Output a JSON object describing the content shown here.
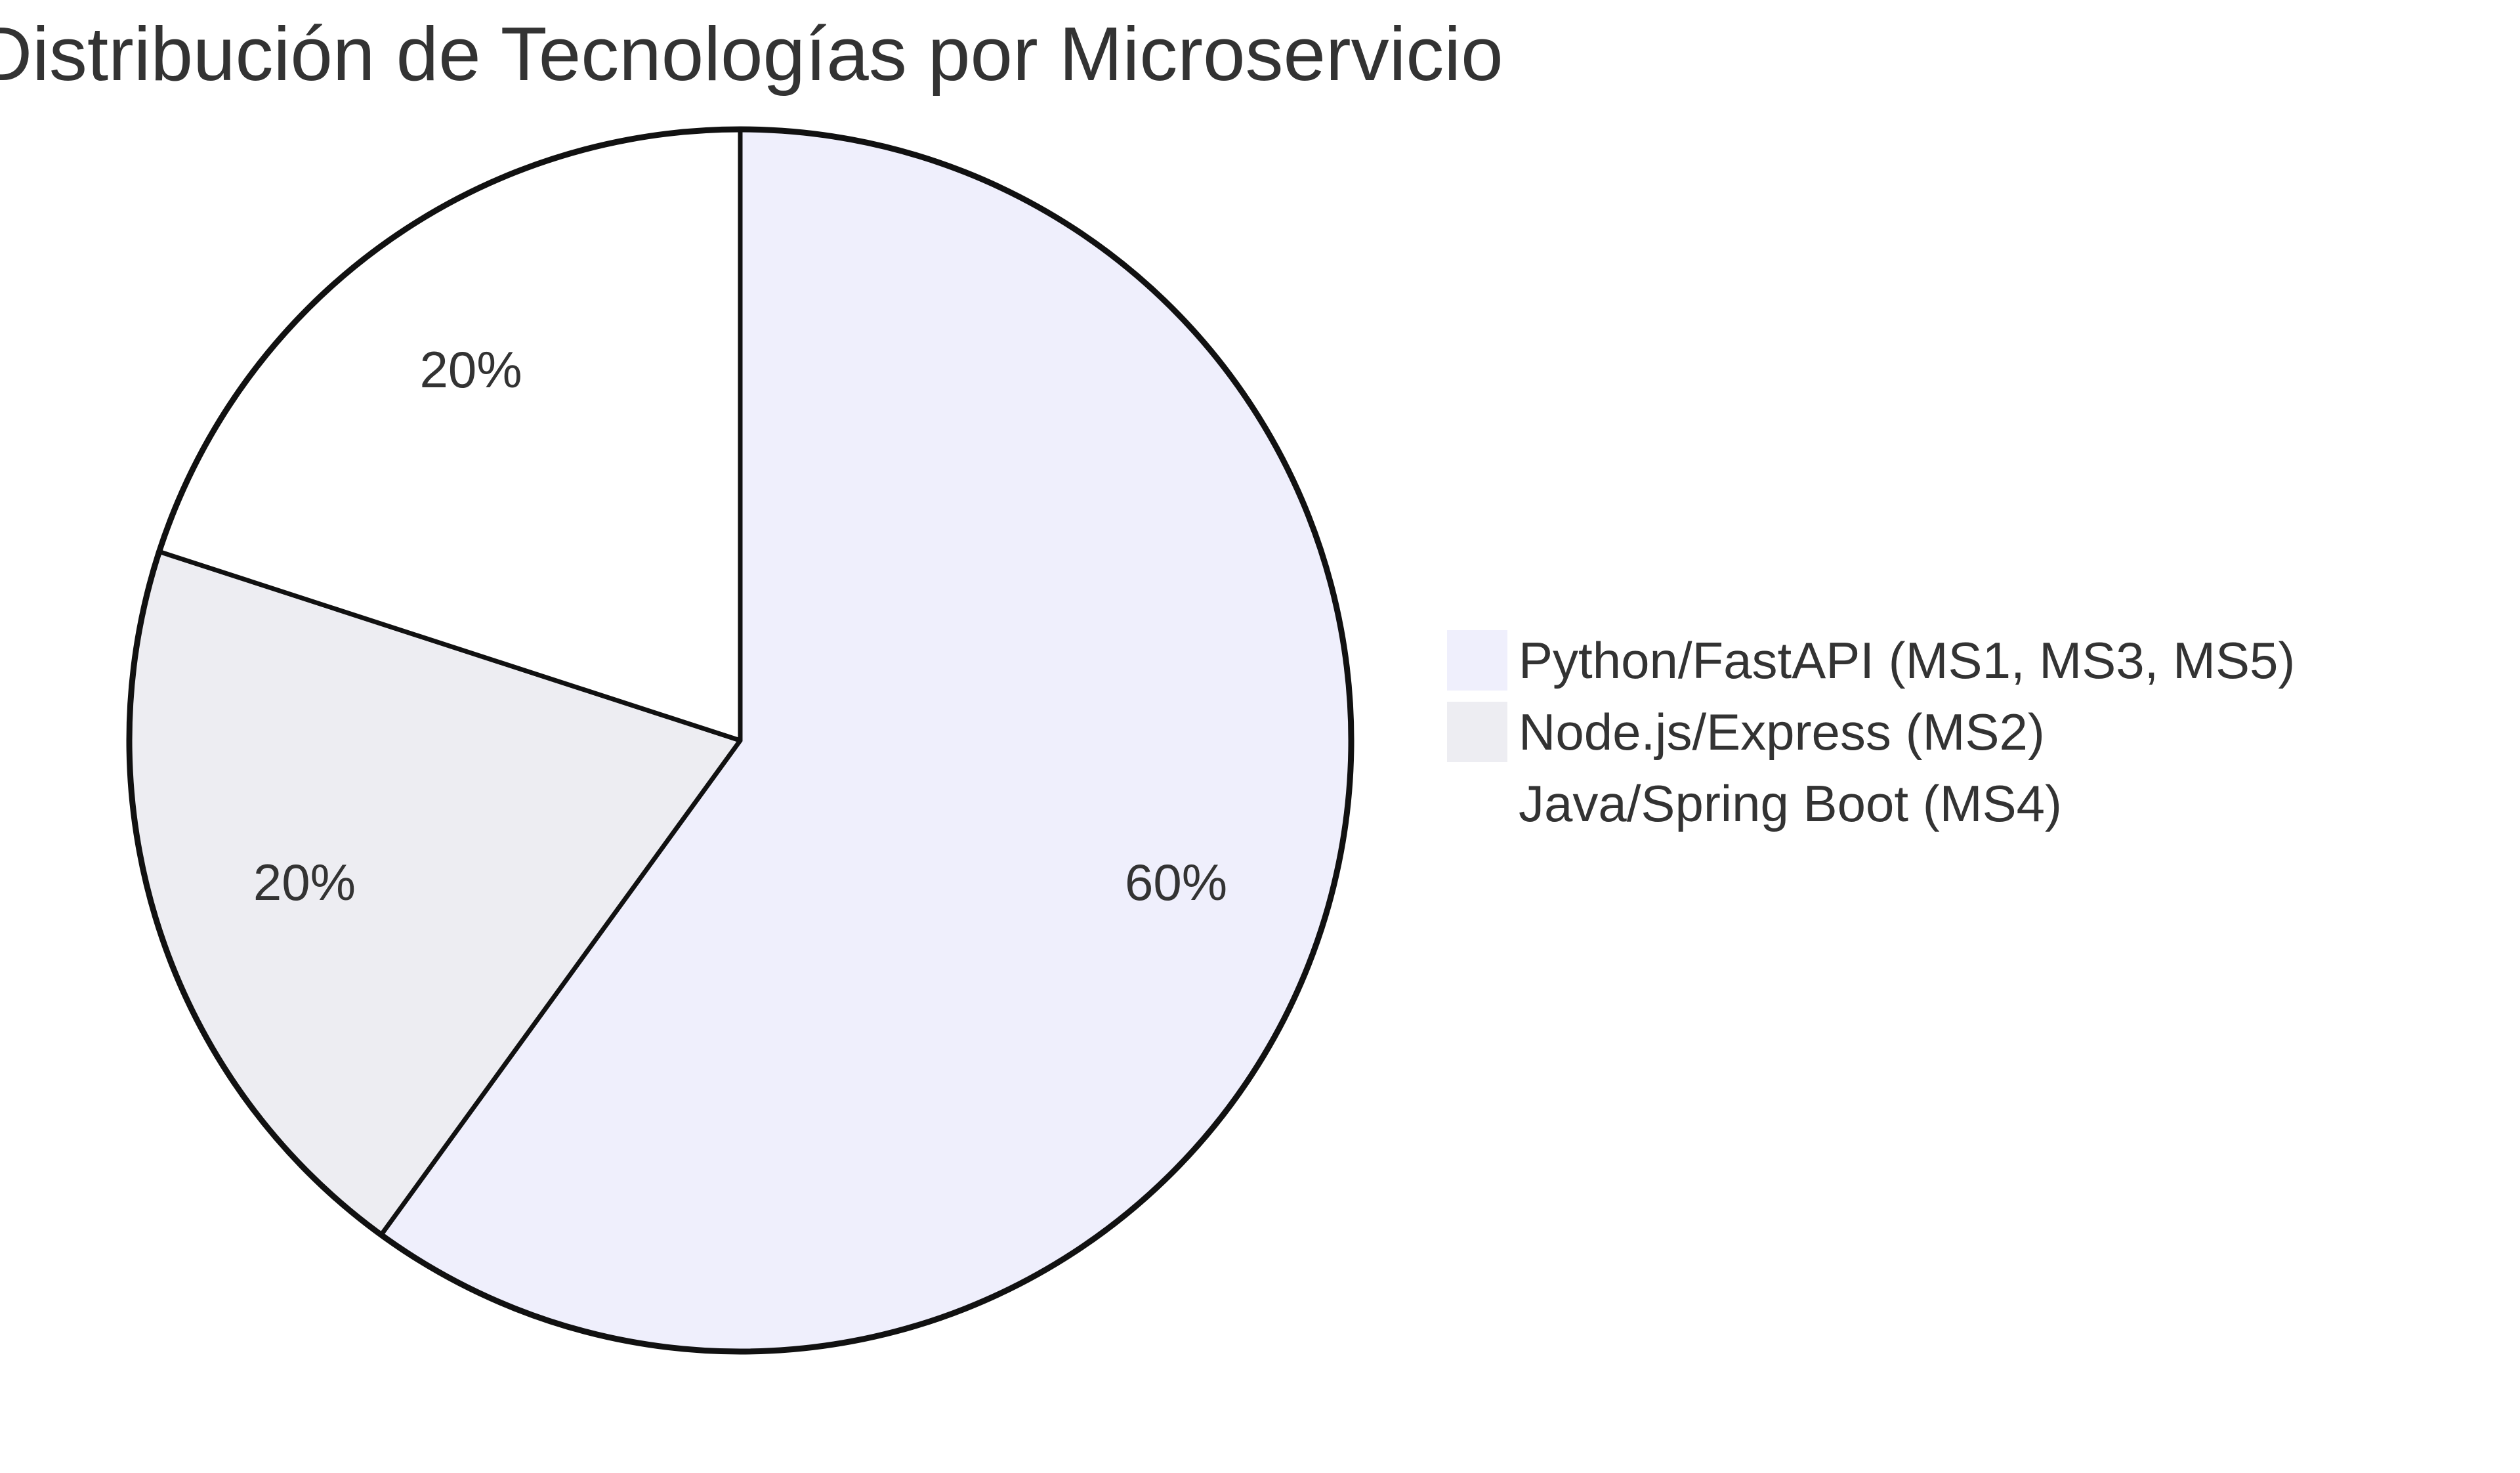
{
  "chart_data": {
    "type": "pie",
    "title": "Distribución de Tecnologías por Microservicio",
    "categories": [
      "Python/FastAPI (MS1, MS3, MS5)",
      "Node.js/Express (MS2)",
      "Java/Spring Boot (MS4)"
    ],
    "values": [
      60,
      20,
      20
    ],
    "data_labels": [
      "60%",
      "20%",
      "20%"
    ],
    "colors": [
      "#efeffc",
      "#ededf2",
      "#ffffff"
    ],
    "stroke_color": "#111111",
    "legend_position": "right",
    "start": "top",
    "direction": "clockwise"
  }
}
